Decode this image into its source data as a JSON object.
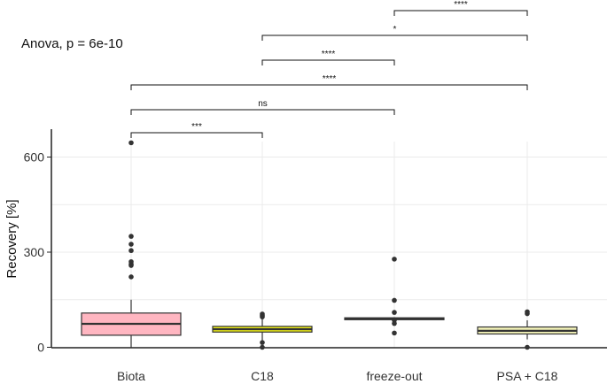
{
  "chart_data": {
    "type": "boxplot",
    "annotation": "Anova, p = 6e-10",
    "xlabel": "",
    "ylabel": "Recovery [%]",
    "ylim": [
      0,
      680
    ],
    "yticks": [
      0,
      300,
      600
    ],
    "categories": [
      "Biota",
      "C18",
      "freeze-out",
      "PSA + C18"
    ],
    "boxes": [
      {
        "category": "Biota",
        "fill": "#ffb6c1",
        "q1": 38,
        "median": 74,
        "q3": 108,
        "whisker_low": 0,
        "whisker_high": 150,
        "outliers": [
          645,
          350,
          325,
          305,
          270,
          262,
          258,
          222
        ]
      },
      {
        "category": "C18",
        "fill": "#e5e51a",
        "q1": 48,
        "median": 57,
        "q3": 66,
        "whisker_low": 20,
        "whisker_high": 92,
        "outliers": [
          105,
          100,
          96,
          15,
          0
        ]
      },
      {
        "category": "freeze-out",
        "fill": "#555555",
        "q1": 87,
        "median": 90,
        "q3": 93,
        "whisker_low": 85,
        "whisker_high": 95,
        "outliers": [
          278,
          148,
          110,
          85,
          75,
          45
        ]
      },
      {
        "category": "PSA + C18",
        "fill": "#f2f2b8",
        "q1": 42,
        "median": 52,
        "q3": 64,
        "whisker_low": 25,
        "whisker_high": 85,
        "outliers": [
          112,
          106,
          0
        ]
      }
    ],
    "comparisons": [
      {
        "group1": "Biota",
        "group2": "C18",
        "label": "***"
      },
      {
        "group1": "Biota",
        "group2": "freeze-out",
        "label": "ns"
      },
      {
        "group1": "Biota",
        "group2": "PSA + C18",
        "label": "****"
      },
      {
        "group1": "C18",
        "group2": "freeze-out",
        "label": "****"
      },
      {
        "group1": "C18",
        "group2": "PSA + C18",
        "label": "*"
      },
      {
        "group1": "freeze-out",
        "group2": "PSA + C18",
        "label": "****"
      }
    ],
    "colors": {
      "grid": "#ebebeb",
      "axis": "#222222",
      "box_border": "#333333",
      "point": "#333333"
    }
  }
}
